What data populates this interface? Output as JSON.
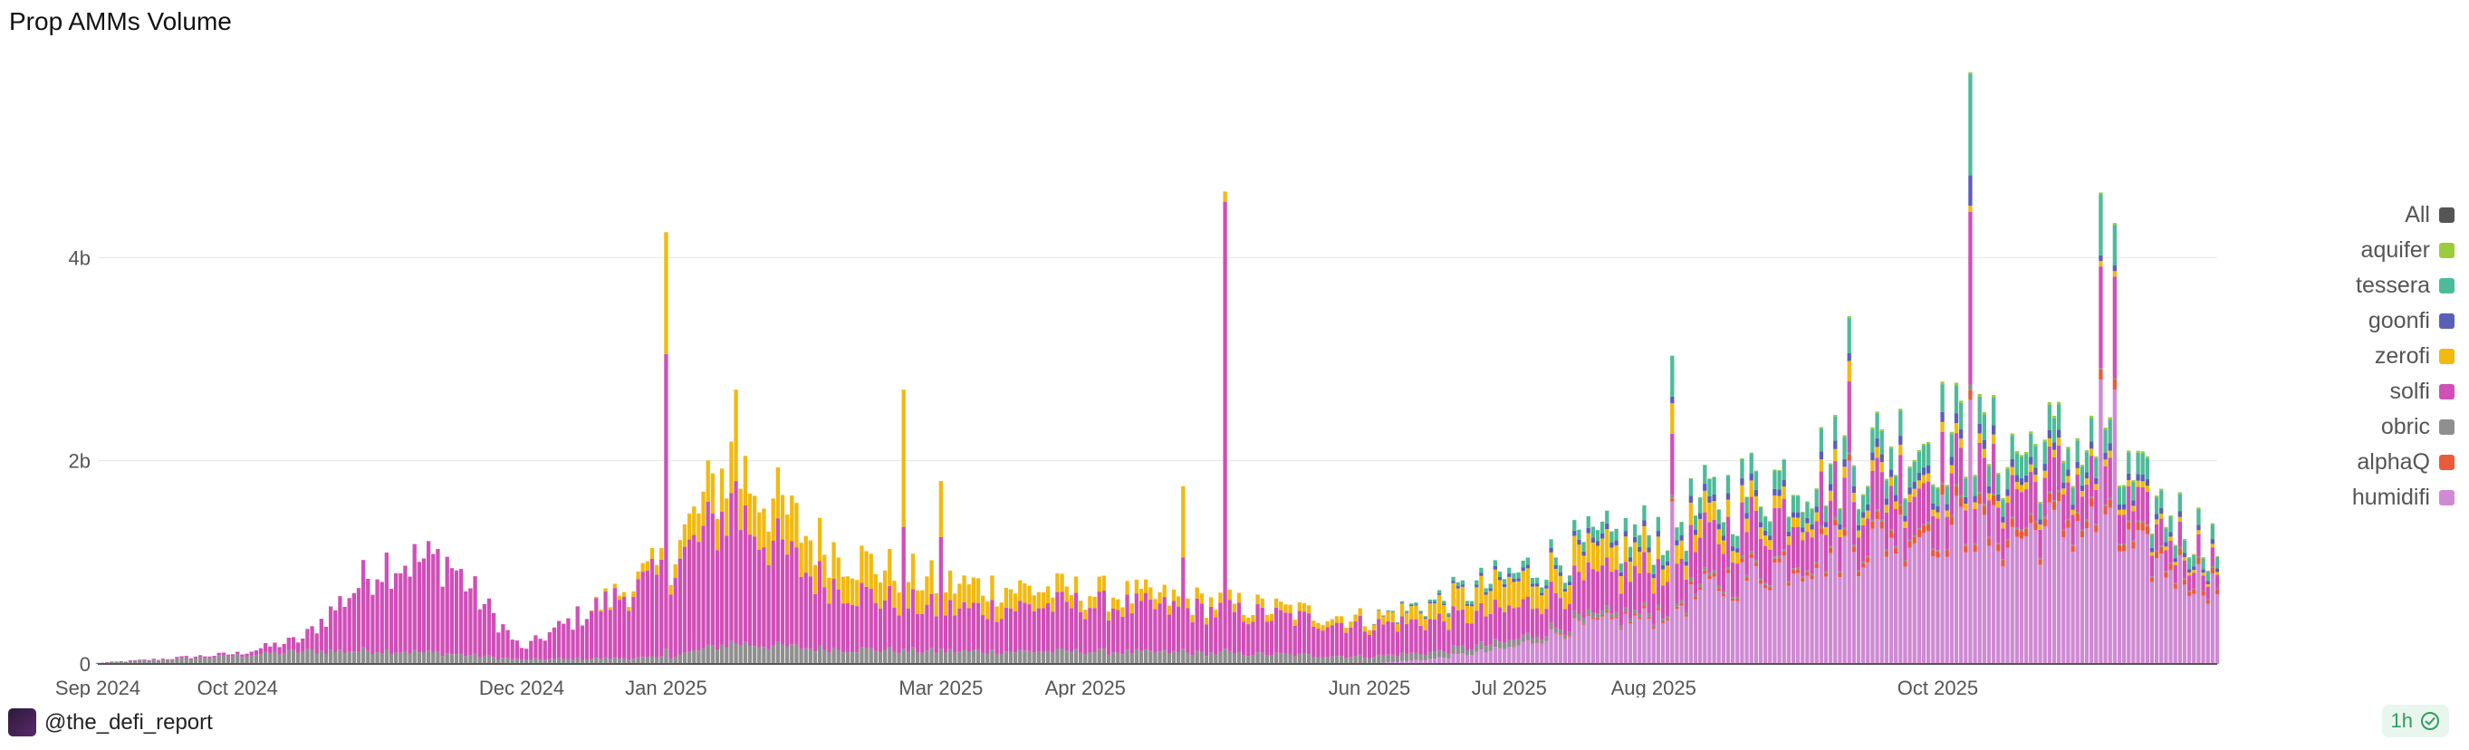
{
  "header": {
    "title": "Prop AMMs Volume"
  },
  "footer": {
    "handle": "@the_defi_report",
    "refresh_interval": "1h"
  },
  "icons": {
    "brand": "the-defi-report-logo",
    "refresh": "check-circle-icon"
  },
  "chart_data": {
    "type": "bar",
    "stacked": true,
    "title": "Prop AMMs Volume",
    "xlabel": "",
    "ylabel": "",
    "x_range": [
      "2024-09-01",
      "2025-11-30"
    ],
    "ylim": [
      0,
      6000000000
    ],
    "yticks": [
      {
        "value": 0,
        "label": "0"
      },
      {
        "value": 2000000000,
        "label": "2b"
      },
      {
        "value": 4000000000,
        "label": "4b"
      }
    ],
    "xticks": [
      {
        "date": "2024-09-01",
        "label": "Sep 2024"
      },
      {
        "date": "2024-10-01",
        "label": "Oct 2024"
      },
      {
        "date": "2024-12-01",
        "label": "Dec 2024"
      },
      {
        "date": "2025-01-01",
        "label": "Jan 2025"
      },
      {
        "date": "2025-03-01",
        "label": "Mar 2025"
      },
      {
        "date": "2025-04-01",
        "label": "Apr 2025"
      },
      {
        "date": "2025-06-01",
        "label": "Jun 2025"
      },
      {
        "date": "2025-07-01",
        "label": "Jul 2025"
      },
      {
        "date": "2025-08-01",
        "label": "Aug 2025"
      },
      {
        "date": "2025-10-01",
        "label": "Oct 2025"
      }
    ],
    "grid": true,
    "legend_position": "right",
    "legend": [
      {
        "name": "All",
        "color": "#555555"
      },
      {
        "name": "aquifer",
        "color": "#9ccc3c"
      },
      {
        "name": "tessera",
        "color": "#4dbb9a"
      },
      {
        "name": "goonfi",
        "color": "#5b5fb8"
      },
      {
        "name": "zerofi",
        "color": "#f2b90f"
      },
      {
        "name": "solfi",
        "color": "#d04fb8"
      },
      {
        "name": "obric",
        "color": "#8f8f8f"
      },
      {
        "name": "alphaQ",
        "color": "#ea5b3a"
      },
      {
        "name": "humidifi",
        "color": "#cf8ad3"
      }
    ],
    "stack_order": [
      "humidifi",
      "alphaQ",
      "obric",
      "solfi",
      "zerofi",
      "goonfi",
      "tessera",
      "aquifer"
    ],
    "series": [
      {
        "name": "humidifi",
        "color": "#cf8ad3",
        "points": [
          [
            "2025-06-01",
            0
          ],
          [
            "2025-06-15",
            0.05
          ],
          [
            "2025-07-01",
            0.15
          ],
          [
            "2025-07-15",
            0.35
          ],
          [
            "2025-08-01",
            0.45
          ],
          [
            "2025-08-15",
            0.75
          ],
          [
            "2025-09-01",
            1.0
          ],
          [
            "2025-09-15",
            1.15
          ],
          [
            "2025-10-01",
            1.35
          ],
          [
            "2025-10-15",
            1.2
          ],
          [
            "2025-11-01",
            1.35
          ],
          [
            "2025-11-15",
            1.0
          ],
          [
            "2025-11-30",
            0.75
          ]
        ]
      },
      {
        "name": "alphaQ",
        "color": "#ea5b3a",
        "points": [
          [
            "2025-07-01",
            0
          ],
          [
            "2025-08-01",
            0.02
          ],
          [
            "2025-09-01",
            0.04
          ],
          [
            "2025-10-01",
            0.08
          ],
          [
            "2025-11-01",
            0.07
          ],
          [
            "2025-11-30",
            0.05
          ]
        ]
      },
      {
        "name": "obric",
        "color": "#8f8f8f",
        "points": [
          [
            "2024-09-01",
            0.01
          ],
          [
            "2024-09-15",
            0.04
          ],
          [
            "2024-10-01",
            0.08
          ],
          [
            "2024-10-15",
            0.12
          ],
          [
            "2024-11-01",
            0.13
          ],
          [
            "2024-11-15",
            0.1
          ],
          [
            "2024-12-01",
            0.04
          ],
          [
            "2024-12-15",
            0.05
          ],
          [
            "2025-01-01",
            0.06
          ],
          [
            "2025-01-15",
            0.2
          ],
          [
            "2025-02-01",
            0.15
          ],
          [
            "2025-03-01",
            0.12
          ],
          [
            "2025-04-01",
            0.12
          ],
          [
            "2025-05-01",
            0.1
          ],
          [
            "2025-06-01",
            0.07
          ],
          [
            "2025-07-01",
            0.06
          ],
          [
            "2025-08-01",
            0.03
          ],
          [
            "2025-09-01",
            0.02
          ],
          [
            "2025-11-30",
            0.01
          ]
        ]
      },
      {
        "name": "solfi",
        "color": "#d04fb8",
        "points": [
          [
            "2024-09-01",
            0
          ],
          [
            "2024-10-01",
            0.02
          ],
          [
            "2024-10-15",
            0.12
          ],
          [
            "2024-11-01",
            0.85
          ],
          [
            "2024-11-15",
            0.9
          ],
          [
            "2024-12-01",
            0.1
          ],
          [
            "2024-12-15",
            0.45
          ],
          [
            "2025-01-01",
            0.8
          ],
          [
            "2025-01-15",
            1.3
          ],
          [
            "2025-02-01",
            0.7
          ],
          [
            "2025-02-15",
            0.5
          ],
          [
            "2025-03-01",
            0.4
          ],
          [
            "2025-04-01",
            0.45
          ],
          [
            "2025-05-01",
            0.4
          ],
          [
            "2025-06-01",
            0.3
          ],
          [
            "2025-07-01",
            0.3
          ],
          [
            "2025-08-01",
            0.4
          ],
          [
            "2025-09-01",
            0.45
          ],
          [
            "2025-10-01",
            0.4
          ],
          [
            "2025-11-01",
            0.35
          ],
          [
            "2025-11-30",
            0.15
          ]
        ]
      },
      {
        "name": "zerofi",
        "color": "#f2b90f",
        "points": [
          [
            "2024-12-15",
            0
          ],
          [
            "2025-01-01",
            0.1
          ],
          [
            "2025-01-15",
            0.45
          ],
          [
            "2025-02-01",
            0.35
          ],
          [
            "2025-03-01",
            0.25
          ],
          [
            "2025-04-01",
            0.12
          ],
          [
            "2025-05-01",
            0.08
          ],
          [
            "2025-06-01",
            0.06
          ],
          [
            "2025-06-15",
            0.15
          ],
          [
            "2025-07-01",
            0.25
          ],
          [
            "2025-08-01",
            0.2
          ],
          [
            "2025-09-01",
            0.1
          ],
          [
            "2025-10-01",
            0.08
          ],
          [
            "2025-11-01",
            0.06
          ],
          [
            "2025-11-30",
            0.03
          ]
        ]
      },
      {
        "name": "goonfi",
        "color": "#5b5fb8",
        "points": [
          [
            "2025-06-01",
            0
          ],
          [
            "2025-07-01",
            0.03
          ],
          [
            "2025-08-01",
            0.05
          ],
          [
            "2025-09-01",
            0.06
          ],
          [
            "2025-10-01",
            0.08
          ],
          [
            "2025-11-01",
            0.06
          ],
          [
            "2025-11-30",
            0.04
          ]
        ]
      },
      {
        "name": "tessera",
        "color": "#4dbb9a",
        "points": [
          [
            "2025-06-01",
            0
          ],
          [
            "2025-07-01",
            0.05
          ],
          [
            "2025-08-01",
            0.12
          ],
          [
            "2025-09-01",
            0.18
          ],
          [
            "2025-10-01",
            0.22
          ],
          [
            "2025-11-01",
            0.2
          ],
          [
            "2025-11-30",
            0.12
          ]
        ]
      },
      {
        "name": "aquifer",
        "color": "#9ccc3c",
        "points": [
          [
            "2025-08-01",
            0
          ],
          [
            "2025-09-01",
            0.01
          ],
          [
            "2025-10-01",
            0.02
          ],
          [
            "2025-11-01",
            0.02
          ],
          [
            "2025-11-30",
            0.01
          ]
        ]
      }
    ],
    "spikes": [
      {
        "date": "2025-01-01",
        "series": {
          "solfi": 2.9,
          "obric": 0.15,
          "zerofi": 1.2
        }
      },
      {
        "date": "2025-01-16",
        "series": {
          "solfi": 1.6,
          "obric": 0.2,
          "zerofi": 0.9
        }
      },
      {
        "date": "2025-02-21",
        "series": {
          "solfi": 1.2,
          "obric": 0.15,
          "zerofi": 1.35
        }
      },
      {
        "date": "2025-03-01",
        "series": {
          "solfi": 1.1,
          "obric": 0.15,
          "zerofi": 0.55
        }
      },
      {
        "date": "2025-04-22",
        "series": {
          "solfi": 0.9,
          "obric": 0.15,
          "zerofi": 0.7
        }
      },
      {
        "date": "2025-05-01",
        "series": {
          "solfi": 4.4,
          "obric": 0.15,
          "zerofi": 0.1
        }
      },
      {
        "date": "2025-08-05",
        "series": {
          "humidifi": 1.6,
          "solfi": 0.6,
          "zerofi": 0.3,
          "tessera": 0.4
        }
      },
      {
        "date": "2025-09-12",
        "series": {
          "humidifi": 2.0,
          "solfi": 0.7,
          "zerofi": 0.2,
          "tessera": 0.35
        }
      },
      {
        "date": "2025-10-08",
        "series": {
          "humidifi": 2.6,
          "solfi": 1.7,
          "obric": 0.05,
          "alphaQ": 0.1,
          "goonfi": 0.3,
          "tessera": 1.0
        }
      },
      {
        "date": "2025-11-05",
        "series": {
          "humidifi": 2.8,
          "solfi": 1.0,
          "alphaQ": 0.1,
          "tessera": 0.6
        }
      },
      {
        "date": "2025-11-08",
        "series": {
          "humidifi": 2.7,
          "solfi": 1.0,
          "alphaQ": 0.1,
          "tessera": 0.4
        }
      }
    ],
    "values_unit": "billions USD"
  }
}
